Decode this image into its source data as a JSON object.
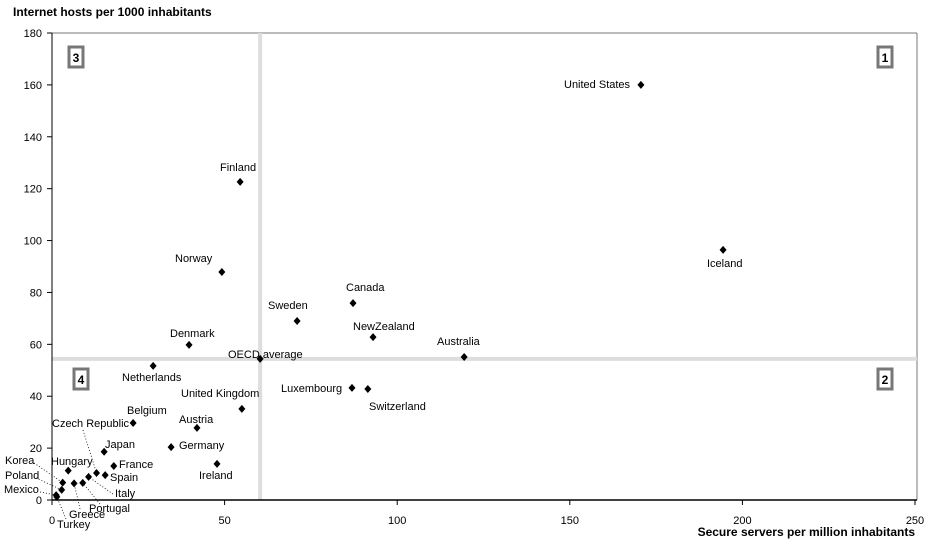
{
  "chart_data": {
    "type": "scatter",
    "title": "",
    "xlabel": "Secure servers per million inhabitants",
    "ylabel": "Internet hosts per 1000 inhabitants",
    "xlim": [
      0,
      250
    ],
    "ylim": [
      0,
      180
    ],
    "x_ticks": [
      "0",
      "50",
      "100",
      "150",
      "200",
      "250"
    ],
    "y_ticks": [
      "0",
      "20",
      "40",
      "60",
      "80",
      "100",
      "120",
      "140",
      "160",
      "180"
    ],
    "grid": false,
    "marker_color": "#000000",
    "reference_line_color": "#dddddd",
    "reference_lines": {
      "x": 60.3,
      "y": 54.4
    },
    "quadrant_labels": [
      "1",
      "2",
      "3",
      "4"
    ],
    "points": [
      {
        "label": "United States",
        "x": 170.6,
        "y": 160.0
      },
      {
        "label": "Iceland",
        "x": 194.4,
        "y": 96.4
      },
      {
        "label": "Finland",
        "x": 54.5,
        "y": 122.6
      },
      {
        "label": "Norway",
        "x": 49.2,
        "y": 87.9
      },
      {
        "label": "Canada",
        "x": 87.2,
        "y": 75.9
      },
      {
        "label": "Sweden",
        "x": 71.0,
        "y": 69.0
      },
      {
        "label": "NewZealand",
        "x": 93.0,
        "y": 62.8
      },
      {
        "label": "Denmark",
        "x": 39.7,
        "y": 59.8
      },
      {
        "label": "Australia",
        "x": 119.4,
        "y": 55.1
      },
      {
        "label": "OECD average",
        "x": 60.3,
        "y": 54.4
      },
      {
        "label": "Netherlands",
        "x": 29.3,
        "y": 51.7
      },
      {
        "label": "Luxembourg",
        "x": 86.9,
        "y": 43.2
      },
      {
        "label": "Switzerland",
        "x": 91.5,
        "y": 42.8
      },
      {
        "label": "United Kingdom",
        "x": 55.0,
        "y": 35.1
      },
      {
        "label": "Belgium",
        "x": 23.5,
        "y": 29.7
      },
      {
        "label": "Austria",
        "x": 42.0,
        "y": 27.8
      },
      {
        "label": "Germany",
        "x": 34.5,
        "y": 20.4
      },
      {
        "label": "Ireland",
        "x": 47.8,
        "y": 13.9
      },
      {
        "label": "Japan",
        "x": 15.1,
        "y": 18.6
      },
      {
        "label": "France",
        "x": 17.9,
        "y": 13.1
      },
      {
        "label": "Spain",
        "x": 15.4,
        "y": 9.6
      },
      {
        "label": "Czech Republic",
        "x": 12.9,
        "y": 10.4
      },
      {
        "label": "Hungary",
        "x": 4.7,
        "y": 11.3
      },
      {
        "label": "Italy",
        "x": 10.6,
        "y": 8.9
      },
      {
        "label": "Portugal",
        "x": 8.9,
        "y": 6.6
      },
      {
        "label": "Greece",
        "x": 6.4,
        "y": 6.4
      },
      {
        "label": "Korea",
        "x": 3.1,
        "y": 6.7
      },
      {
        "label": "Poland",
        "x": 2.8,
        "y": 3.9
      },
      {
        "label": "Mexico",
        "x": 1.2,
        "y": 1.9
      },
      {
        "label": "Turkey",
        "x": 1.4,
        "y": 1.2
      }
    ]
  }
}
